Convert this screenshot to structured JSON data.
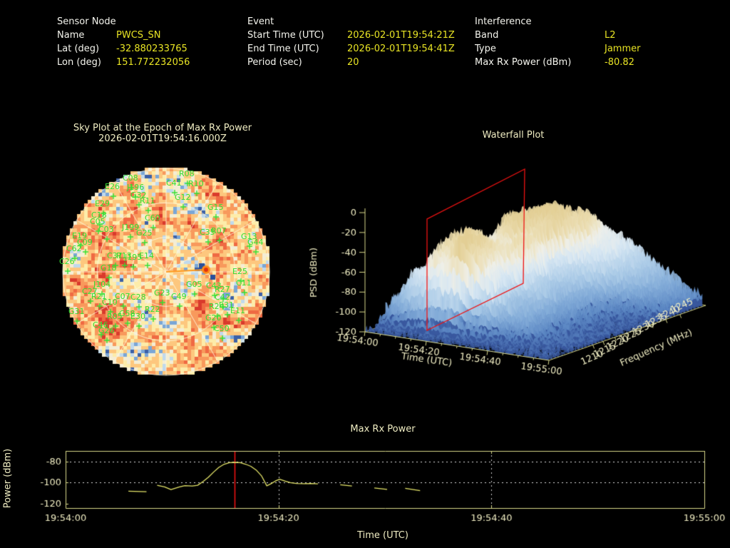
{
  "colors": {
    "background": "#000000",
    "label_white": "#f5f5ee",
    "value_yellow": "#e8e424",
    "plot_cream": "#efecc2",
    "axis_khaki": "#d8d88a",
    "grid_white": "#e2e2e2",
    "series_yellow": "#e6e66a",
    "marker_red": "#ee1212",
    "sat_green": "#32df32",
    "ray_orange": "#ff9a1e"
  },
  "header": {
    "sensor": {
      "title": "Sensor Node",
      "rows": [
        {
          "label": "Name",
          "value": "PWCS_SN"
        },
        {
          "label": "Lat (deg)",
          "value": "-32.880233765"
        },
        {
          "label": "Lon (deg)",
          "value": "151.772232056"
        }
      ]
    },
    "event": {
      "title": "Event",
      "rows": [
        {
          "label": "Start Time (UTC)",
          "value": "2026-02-01T19:54:21Z"
        },
        {
          "label": "End Time (UTC)",
          "value": "2026-02-01T19:54:41Z"
        },
        {
          "label": "Period (sec)",
          "value": "20"
        }
      ]
    },
    "interference": {
      "title": "Interference",
      "rows": [
        {
          "label": "Band",
          "value": "L2"
        },
        {
          "label": "Type",
          "value": "Jammer"
        },
        {
          "label": "Max Rx Power (dBm)",
          "value": "-80.82"
        }
      ]
    }
  },
  "chart_data": [
    {
      "id": "skyplot",
      "type": "heatmap",
      "title": "Sky Plot at the Epoch of Max Rx Power",
      "subtitle": "2026-02-01T19:54:16.000Z",
      "projection": "polar-sky",
      "elevation_rings_deg": [
        0,
        30,
        60
      ],
      "azimuth_spoke_step_deg": 30,
      "palette": [
        "#3c60a6",
        "#7aa6d6",
        "#c0d9ec",
        "#f4edd4",
        "#fdeca9",
        "#fdc77e",
        "#f8995c",
        "#ef6a43",
        "#d93a2c"
      ],
      "interference_bearing": "east-of-center ray with hotspot",
      "satellites": [
        {
          "id": "C08",
          "x": 89,
          "y": 14
        },
        {
          "id": "R08",
          "x": 168,
          "y": 8
        },
        {
          "id": "E26",
          "x": 64,
          "y": 26
        },
        {
          "id": "J196",
          "x": 95,
          "y": 27
        },
        {
          "id": "C41",
          "x": 150,
          "y": 21
        },
        {
          "id": "R10",
          "x": 181,
          "y": 22
        },
        {
          "id": "G32",
          "x": 100,
          "y": 38
        },
        {
          "id": "R11",
          "x": 113,
          "y": 46
        },
        {
          "id": "E29",
          "x": 50,
          "y": 50
        },
        {
          "id": "G12",
          "x": 162,
          "y": 41
        },
        {
          "id": "C18",
          "x": 45,
          "y": 66
        },
        {
          "id": "C05",
          "x": 43,
          "y": 75
        },
        {
          "id": "G15",
          "x": 208,
          "y": 55
        },
        {
          "id": "C03",
          "x": 55,
          "y": 86
        },
        {
          "id": "J199",
          "x": 88,
          "y": 83
        },
        {
          "id": "C60",
          "x": 120,
          "y": 70
        },
        {
          "id": "G25",
          "x": 108,
          "y": 91
        },
        {
          "id": "E19",
          "x": 18,
          "y": 95
        },
        {
          "id": "C09",
          "x": 25,
          "y": 104
        },
        {
          "id": "C62",
          "x": 10,
          "y": 113
        },
        {
          "id": "C26",
          "x": 0,
          "y": 131
        },
        {
          "id": "C35",
          "x": 197,
          "y": 90
        },
        {
          "id": "R07",
          "x": 213,
          "y": 88
        },
        {
          "id": "G13",
          "x": 255,
          "y": 96
        },
        {
          "id": "G44",
          "x": 264,
          "y": 104
        },
        {
          "id": "C37",
          "x": 67,
          "y": 123
        },
        {
          "id": "R13",
          "x": 80,
          "y": 123
        },
        {
          "id": "J195",
          "x": 92,
          "y": 125
        },
        {
          "id": "E14",
          "x": 112,
          "y": 123
        },
        {
          "id": "G18",
          "x": 58,
          "y": 140
        },
        {
          "id": "E25",
          "x": 243,
          "y": 145
        },
        {
          "id": "G05",
          "x": 178,
          "y": 163
        },
        {
          "id": "C43",
          "x": 206,
          "y": 165
        },
        {
          "id": "R27",
          "x": 218,
          "y": 170
        },
        {
          "id": "C11",
          "x": 248,
          "y": 161
        },
        {
          "id": "C49",
          "x": 157,
          "y": 180
        },
        {
          "id": "C42",
          "x": 218,
          "y": 181
        },
        {
          "id": "E31",
          "x": 224,
          "y": 192
        },
        {
          "id": "R24",
          "x": 210,
          "y": 194
        },
        {
          "id": "E11",
          "x": 240,
          "y": 200
        },
        {
          "id": "G20",
          "x": 205,
          "y": 210
        },
        {
          "id": "C50",
          "x": 217,
          "y": 225
        },
        {
          "id": "J104",
          "x": 48,
          "y": 163
        },
        {
          "id": "C27",
          "x": 32,
          "y": 173
        },
        {
          "id": "R21",
          "x": 45,
          "y": 180
        },
        {
          "id": "C07",
          "x": 78,
          "y": 180
        },
        {
          "id": "C28",
          "x": 100,
          "y": 181
        },
        {
          "id": "G23",
          "x": 133,
          "y": 175
        },
        {
          "id": "C10",
          "x": 60,
          "y": 188
        },
        {
          "id": "G31",
          "x": 13,
          "y": 201
        },
        {
          "id": "R05",
          "x": 67,
          "y": 208
        },
        {
          "id": "G58",
          "x": 84,
          "y": 204
        },
        {
          "id": "E30",
          "x": 100,
          "y": 208
        },
        {
          "id": "R22",
          "x": 120,
          "y": 198
        },
        {
          "id": "C46",
          "x": 47,
          "y": 220
        },
        {
          "id": "G26",
          "x": 55,
          "y": 228
        }
      ]
    },
    {
      "id": "waterfall",
      "type": "heatmap",
      "title": "Waterfall Plot",
      "xlabel": "Time (UTC)",
      "ylabel": "Frequency (MHz)",
      "zlabel": "PSD (dBm)",
      "time_ticks": [
        "19:54:00",
        "19:54:20",
        "19:54:40",
        "19:55:00"
      ],
      "freq_ticks": [
        "1210",
        "1215",
        "1220",
        "1225",
        "1230",
        "1235",
        "1240",
        "1245"
      ],
      "psd_ticks": [
        "0",
        "-20",
        "-40",
        "-60",
        "-80",
        "-100",
        "-120"
      ],
      "psd_range_dbm": [
        -120,
        0
      ],
      "noise_floor_dbm": -108,
      "peak_psd_dbm": -24,
      "slice_marker_time": "19:54:16"
    },
    {
      "id": "max-rx-power",
      "type": "line",
      "title": "Max Rx Power",
      "xlabel": "Time (UTC)",
      "ylabel": "Power (dBm)",
      "x_ticks": [
        "19:54:00",
        "19:54:20",
        "19:54:40",
        "19:55:00"
      ],
      "x_tick_sec": [
        0,
        20,
        40,
        60
      ],
      "y_ticks": [
        -80,
        -100,
        -120
      ],
      "ylim": [
        -124,
        -70
      ],
      "x_range_sec": [
        0,
        60
      ],
      "event_marker_sec": 15.9,
      "dotted_vlines_sec": [
        20,
        40
      ],
      "gridlines_dbm": [
        -80,
        -100
      ],
      "segments": [
        [
          [
            5.9,
            -108
          ],
          [
            7.6,
            -108.5
          ]
        ],
        [
          [
            8.6,
            -102.5
          ],
          [
            9.3,
            -104
          ],
          [
            9.9,
            -106.5
          ],
          [
            10.7,
            -104
          ],
          [
            11.2,
            -102.8
          ],
          [
            11.9,
            -103.2
          ],
          [
            12.4,
            -102.5
          ],
          [
            12.9,
            -99
          ],
          [
            13.4,
            -95
          ],
          [
            13.9,
            -90
          ],
          [
            14.4,
            -85.5
          ],
          [
            14.9,
            -82.5
          ],
          [
            15.4,
            -81
          ],
          [
            15.9,
            -80.8
          ],
          [
            16.4,
            -81
          ],
          [
            16.9,
            -82.5
          ],
          [
            17.4,
            -84.5
          ],
          [
            17.9,
            -88
          ],
          [
            18.4,
            -93.5
          ],
          [
            18.9,
            -103
          ],
          [
            19.3,
            -101
          ],
          [
            19.7,
            -98.5
          ],
          [
            20.1,
            -96.8
          ],
          [
            20.6,
            -98.5
          ],
          [
            21.1,
            -100
          ],
          [
            21.7,
            -100.8
          ],
          [
            22.4,
            -101
          ],
          [
            23.1,
            -100.8
          ],
          [
            23.7,
            -101.2
          ]
        ],
        [
          [
            25.8,
            -102
          ],
          [
            26.9,
            -103.2
          ]
        ],
        [
          [
            29.0,
            -105
          ],
          [
            30.2,
            -106.3
          ]
        ],
        [
          [
            31.9,
            -105.3
          ],
          [
            33.3,
            -107.5
          ]
        ]
      ]
    }
  ]
}
